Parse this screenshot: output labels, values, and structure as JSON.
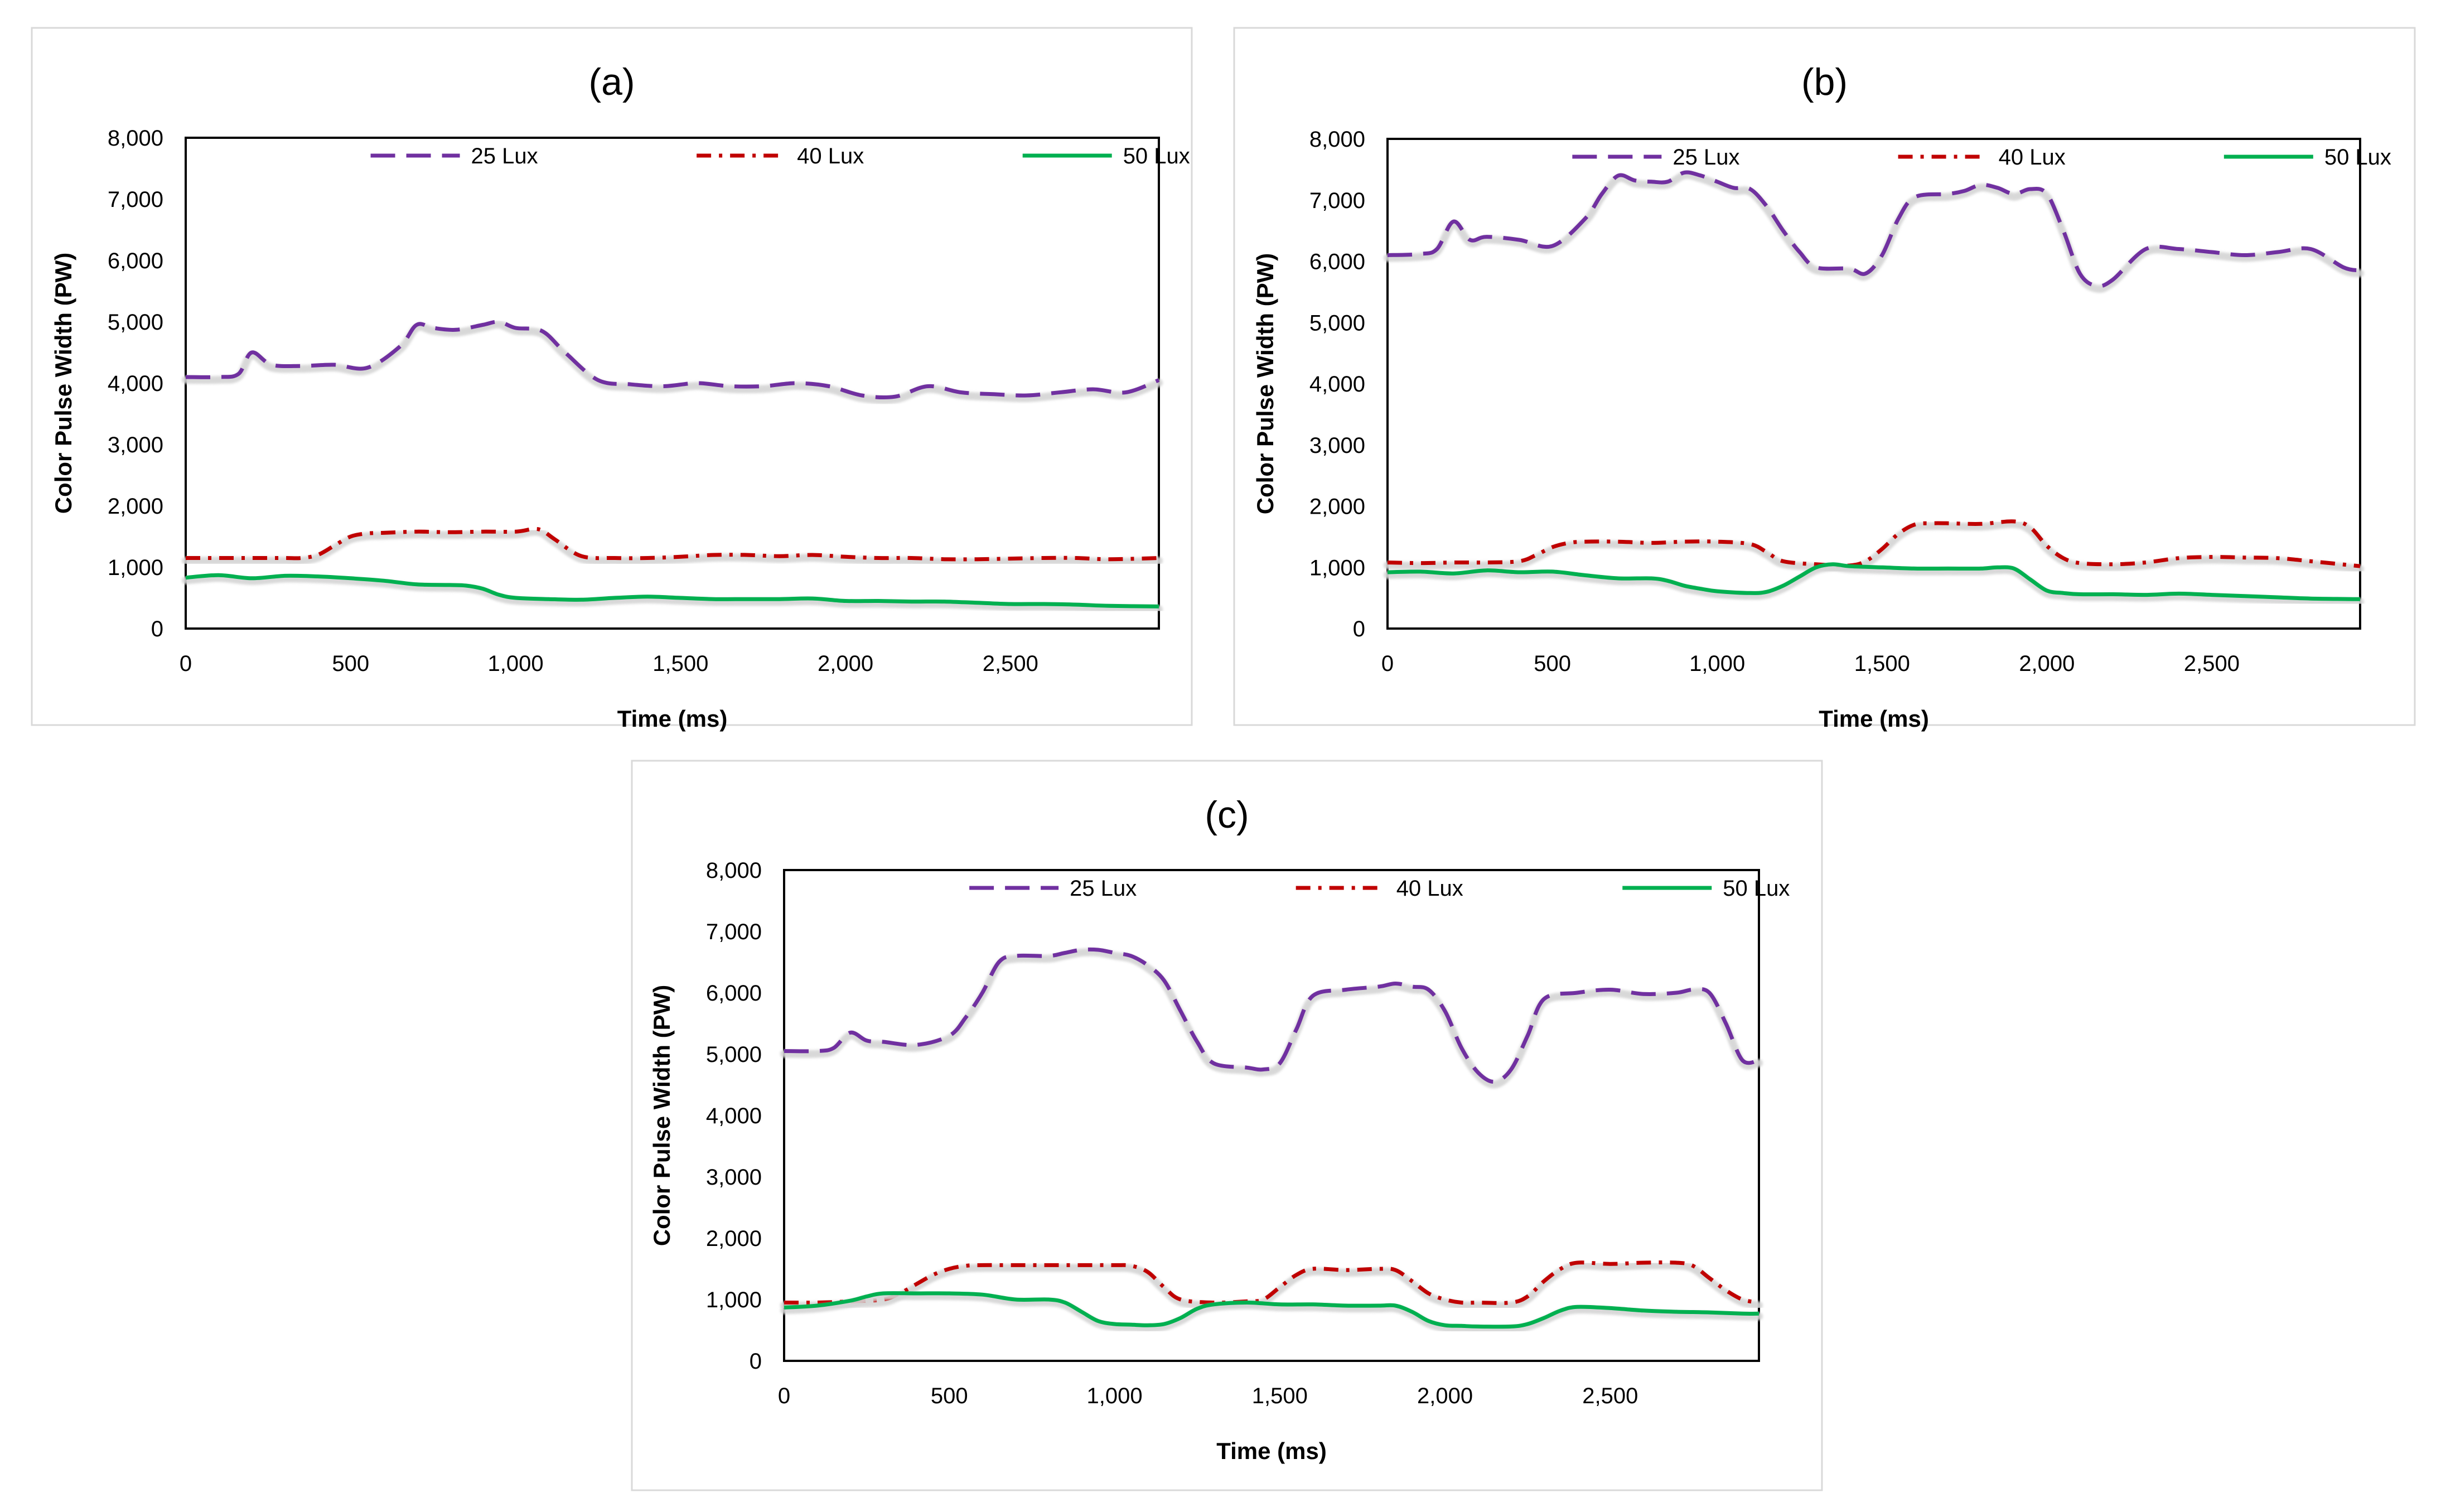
{
  "figure": {
    "colors": {
      "lux25": "#7030a0",
      "lux40": "#c00000",
      "lux50": "#00b050",
      "shadow": "#d4d4d4",
      "panel_border": "#d9d9d9",
      "axis": "#000000",
      "text": "#000000"
    }
  },
  "chart_data": [
    {
      "type": "line",
      "title": "(a)",
      "xlabel": "Time (ms)",
      "ylabel": "Color Pulse Width (PW)",
      "xlim": [
        0,
        2950
      ],
      "ylim": [
        0,
        8000
      ],
      "xticks": [
        0,
        500,
        1000,
        1500,
        2000,
        2500
      ],
      "xtick_labels": [
        "0",
        "500",
        "1,000",
        "1,500",
        "2,000",
        "2,500"
      ],
      "yticks": [
        0,
        1000,
        2000,
        3000,
        4000,
        5000,
        6000,
        7000,
        8000
      ],
      "ytick_labels": [
        "0",
        "1,000",
        "2,000",
        "3,000",
        "4,000",
        "5,000",
        "6,000",
        "7,000",
        "8,000"
      ],
      "legend_position": "top-center",
      "grid": false,
      "series": [
        {
          "name": "25 Lux",
          "style": "dash",
          "x": [
            0,
            100,
            160,
            200,
            260,
            350,
            450,
            550,
            650,
            700,
            750,
            820,
            900,
            950,
            1000,
            1080,
            1150,
            1250,
            1350,
            1450,
            1550,
            1650,
            1750,
            1850,
            1950,
            2050,
            2150,
            2250,
            2350,
            2450,
            2550,
            2650,
            2750,
            2850,
            2950
          ],
          "y": [
            4100,
            4100,
            4150,
            4500,
            4300,
            4280,
            4300,
            4250,
            4600,
            4950,
            4900,
            4870,
            4950,
            5000,
            4900,
            4850,
            4500,
            4050,
            3980,
            3950,
            4000,
            3950,
            3950,
            4000,
            3950,
            3800,
            3780,
            3950,
            3850,
            3820,
            3800,
            3850,
            3900,
            3850,
            4050
          ]
        },
        {
          "name": "40 Lux",
          "style": "dashdot",
          "x": [
            0,
            100,
            200,
            300,
            350,
            400,
            450,
            500,
            550,
            600,
            700,
            800,
            900,
            1000,
            1050,
            1080,
            1120,
            1200,
            1300,
            1400,
            1500,
            1600,
            1700,
            1800,
            1900,
            2000,
            2100,
            2200,
            2300,
            2400,
            2500,
            2600,
            2700,
            2800,
            2950
          ],
          "y": [
            1150,
            1150,
            1150,
            1150,
            1150,
            1200,
            1350,
            1500,
            1550,
            1560,
            1580,
            1570,
            1580,
            1580,
            1620,
            1600,
            1450,
            1180,
            1150,
            1150,
            1170,
            1200,
            1200,
            1180,
            1200,
            1170,
            1150,
            1150,
            1130,
            1130,
            1140,
            1150,
            1150,
            1130,
            1150
          ]
        },
        {
          "name": "50 Lux",
          "style": "solid",
          "x": [
            0,
            100,
            200,
            300,
            400,
            500,
            600,
            700,
            800,
            850,
            900,
            950,
            1000,
            1100,
            1200,
            1300,
            1400,
            1500,
            1600,
            1700,
            1800,
            1900,
            2000,
            2100,
            2200,
            2300,
            2400,
            2500,
            2600,
            2700,
            2800,
            2950
          ],
          "y": [
            830,
            870,
            820,
            860,
            850,
            820,
            780,
            720,
            710,
            700,
            650,
            550,
            500,
            480,
            470,
            500,
            520,
            500,
            480,
            480,
            480,
            490,
            450,
            450,
            440,
            440,
            420,
            400,
            400,
            390,
            370,
            360
          ]
        }
      ]
    },
    {
      "type": "line",
      "title": "(b)",
      "xlabel": "Time (ms)",
      "ylabel": "Color Pulse Width (PW)",
      "xlim": [
        0,
        2950
      ],
      "ylim": [
        0,
        8000
      ],
      "xticks": [
        0,
        500,
        1000,
        1500,
        2000,
        2500
      ],
      "xtick_labels": [
        "0",
        "500",
        "1,000",
        "1,500",
        "2,000",
        "2,500"
      ],
      "yticks": [
        0,
        1000,
        2000,
        3000,
        4000,
        5000,
        6000,
        7000,
        8000
      ],
      "ytick_labels": [
        "0",
        "1,000",
        "2,000",
        "3,000",
        "4,000",
        "5,000",
        "6,000",
        "7,000",
        "8,000"
      ],
      "legend_position": "top-center",
      "grid": false,
      "series": [
        {
          "name": "25 Lux",
          "style": "dash",
          "x": [
            0,
            100,
            150,
            200,
            250,
            300,
            400,
            500,
            600,
            650,
            700,
            750,
            800,
            850,
            900,
            950,
            1000,
            1050,
            1100,
            1150,
            1200,
            1250,
            1300,
            1400,
            1450,
            1500,
            1550,
            1600,
            1700,
            1750,
            1800,
            1850,
            1900,
            1950,
            2000,
            2050,
            2100,
            2150,
            2200,
            2300,
            2400,
            2500,
            2600,
            2700,
            2800,
            2900,
            2950
          ],
          "y": [
            6100,
            6120,
            6200,
            6650,
            6350,
            6400,
            6350,
            6250,
            6700,
            7100,
            7400,
            7320,
            7300,
            7300,
            7450,
            7400,
            7300,
            7200,
            7180,
            6900,
            6500,
            6150,
            5900,
            5880,
            5800,
            6100,
            6700,
            7050,
            7100,
            7150,
            7250,
            7200,
            7100,
            7180,
            7100,
            6500,
            5800,
            5600,
            5700,
            6200,
            6200,
            6150,
            6100,
            6150,
            6200,
            5900,
            5850
          ]
        },
        {
          "name": "40 Lux",
          "style": "dashdot",
          "x": [
            0,
            100,
            200,
            300,
            400,
            450,
            500,
            550,
            600,
            700,
            800,
            900,
            1000,
            1100,
            1150,
            1200,
            1300,
            1400,
            1450,
            1500,
            1550,
            1600,
            1650,
            1700,
            1800,
            1900,
            1950,
            2000,
            2050,
            2100,
            2200,
            2300,
            2400,
            2500,
            2600,
            2700,
            2800,
            2950
          ],
          "y": [
            1080,
            1070,
            1080,
            1080,
            1100,
            1200,
            1330,
            1400,
            1420,
            1420,
            1400,
            1420,
            1420,
            1380,
            1250,
            1100,
            1050,
            1030,
            1100,
            1300,
            1550,
            1700,
            1720,
            1720,
            1710,
            1750,
            1650,
            1350,
            1150,
            1070,
            1050,
            1080,
            1150,
            1170,
            1160,
            1150,
            1100,
            1020
          ]
        },
        {
          "name": "50 Lux",
          "style": "solid",
          "x": [
            0,
            100,
            200,
            300,
            400,
            500,
            600,
            700,
            800,
            850,
            900,
            950,
            1000,
            1100,
            1150,
            1200,
            1250,
            1300,
            1350,
            1400,
            1500,
            1600,
            1700,
            1800,
            1850,
            1900,
            1950,
            2000,
            2050,
            2100,
            2200,
            2300,
            2400,
            2500,
            2600,
            2700,
            2800,
            2950
          ],
          "y": [
            920,
            930,
            900,
            950,
            920,
            930,
            870,
            820,
            820,
            780,
            700,
            650,
            610,
            580,
            600,
            700,
            850,
            1000,
            1050,
            1020,
            1000,
            980,
            980,
            980,
            1000,
            980,
            800,
            620,
            580,
            560,
            560,
            550,
            570,
            550,
            530,
            510,
            490,
            480
          ]
        }
      ]
    },
    {
      "type": "line",
      "title": "(c)",
      "xlabel": "Time (ms)",
      "ylabel": "Color Pulse Width (PW)",
      "xlim": [
        0,
        2950
      ],
      "ylim": [
        0,
        8000
      ],
      "xticks": [
        0,
        500,
        1000,
        1500,
        2000,
        2500
      ],
      "xtick_labels": [
        "0",
        "500",
        "1,000",
        "1,500",
        "2,000",
        "2,500"
      ],
      "yticks": [
        0,
        1000,
        2000,
        3000,
        4000,
        5000,
        6000,
        7000,
        8000
      ],
      "ytick_labels": [
        "0",
        "1,000",
        "2,000",
        "3,000",
        "4,000",
        "5,000",
        "6,000",
        "7,000",
        "8,000"
      ],
      "legend_position": "top-center",
      "grid": false,
      "series": [
        {
          "name": "25 Lux",
          "style": "dash",
          "x": [
            0,
            100,
            150,
            200,
            250,
            300,
            400,
            500,
            550,
            600,
            650,
            700,
            800,
            850,
            900,
            950,
            1000,
            1050,
            1100,
            1150,
            1200,
            1250,
            1300,
            1400,
            1450,
            1500,
            1550,
            1600,
            1700,
            1800,
            1850,
            1900,
            1950,
            2000,
            2050,
            2100,
            2150,
            2200,
            2250,
            2300,
            2400,
            2500,
            2600,
            2700,
            2750,
            2800,
            2850,
            2900,
            2950
          ],
          "y": [
            5050,
            5050,
            5100,
            5350,
            5220,
            5200,
            5150,
            5300,
            5600,
            6000,
            6500,
            6600,
            6600,
            6650,
            6700,
            6700,
            6650,
            6600,
            6450,
            6200,
            5700,
            5200,
            4850,
            4780,
            4750,
            4850,
            5400,
            5950,
            6050,
            6100,
            6150,
            6100,
            6050,
            5700,
            5100,
            4700,
            4550,
            4750,
            5300,
            5900,
            6000,
            6050,
            5980,
            6000,
            6050,
            6000,
            5500,
            4900,
            4900
          ]
        },
        {
          "name": "40 Lux",
          "style": "dashdot",
          "x": [
            0,
            100,
            200,
            300,
            350,
            400,
            450,
            500,
            550,
            600,
            700,
            800,
            900,
            1000,
            1050,
            1100,
            1150,
            1200,
            1300,
            1400,
            1450,
            1500,
            1550,
            1600,
            1700,
            1800,
            1850,
            1900,
            1950,
            2000,
            2050,
            2100,
            2200,
            2250,
            2300,
            2350,
            2400,
            2500,
            2600,
            2700,
            2750,
            2800,
            2850,
            2900,
            2950
          ],
          "y": [
            950,
            950,
            970,
            1000,
            1100,
            1250,
            1400,
            1500,
            1550,
            1560,
            1560,
            1560,
            1560,
            1560,
            1550,
            1450,
            1200,
            1000,
            950,
            970,
            1000,
            1200,
            1400,
            1500,
            1480,
            1500,
            1480,
            1300,
            1100,
            1000,
            950,
            950,
            950,
            1050,
            1300,
            1500,
            1600,
            1580,
            1600,
            1600,
            1550,
            1350,
            1150,
            1000,
            950
          ]
        },
        {
          "name": "50 Lux",
          "style": "solid",
          "x": [
            0,
            100,
            200,
            250,
            300,
            400,
            500,
            600,
            700,
            800,
            850,
            900,
            950,
            1000,
            1050,
            1100,
            1150,
            1200,
            1250,
            1300,
            1400,
            1500,
            1600,
            1700,
            1800,
            1850,
            1900,
            1950,
            2000,
            2050,
            2100,
            2200,
            2250,
            2300,
            2350,
            2400,
            2500,
            2600,
            2700,
            2800,
            2900,
            2950
          ],
          "y": [
            870,
            900,
            980,
            1050,
            1100,
            1100,
            1100,
            1080,
            1000,
            1000,
            950,
            800,
            650,
            600,
            590,
            580,
            600,
            700,
            850,
            920,
            950,
            920,
            920,
            900,
            900,
            900,
            800,
            650,
            580,
            570,
            560,
            560,
            600,
            700,
            820,
            880,
            860,
            820,
            800,
            790,
            770,
            770
          ]
        }
      ]
    }
  ]
}
